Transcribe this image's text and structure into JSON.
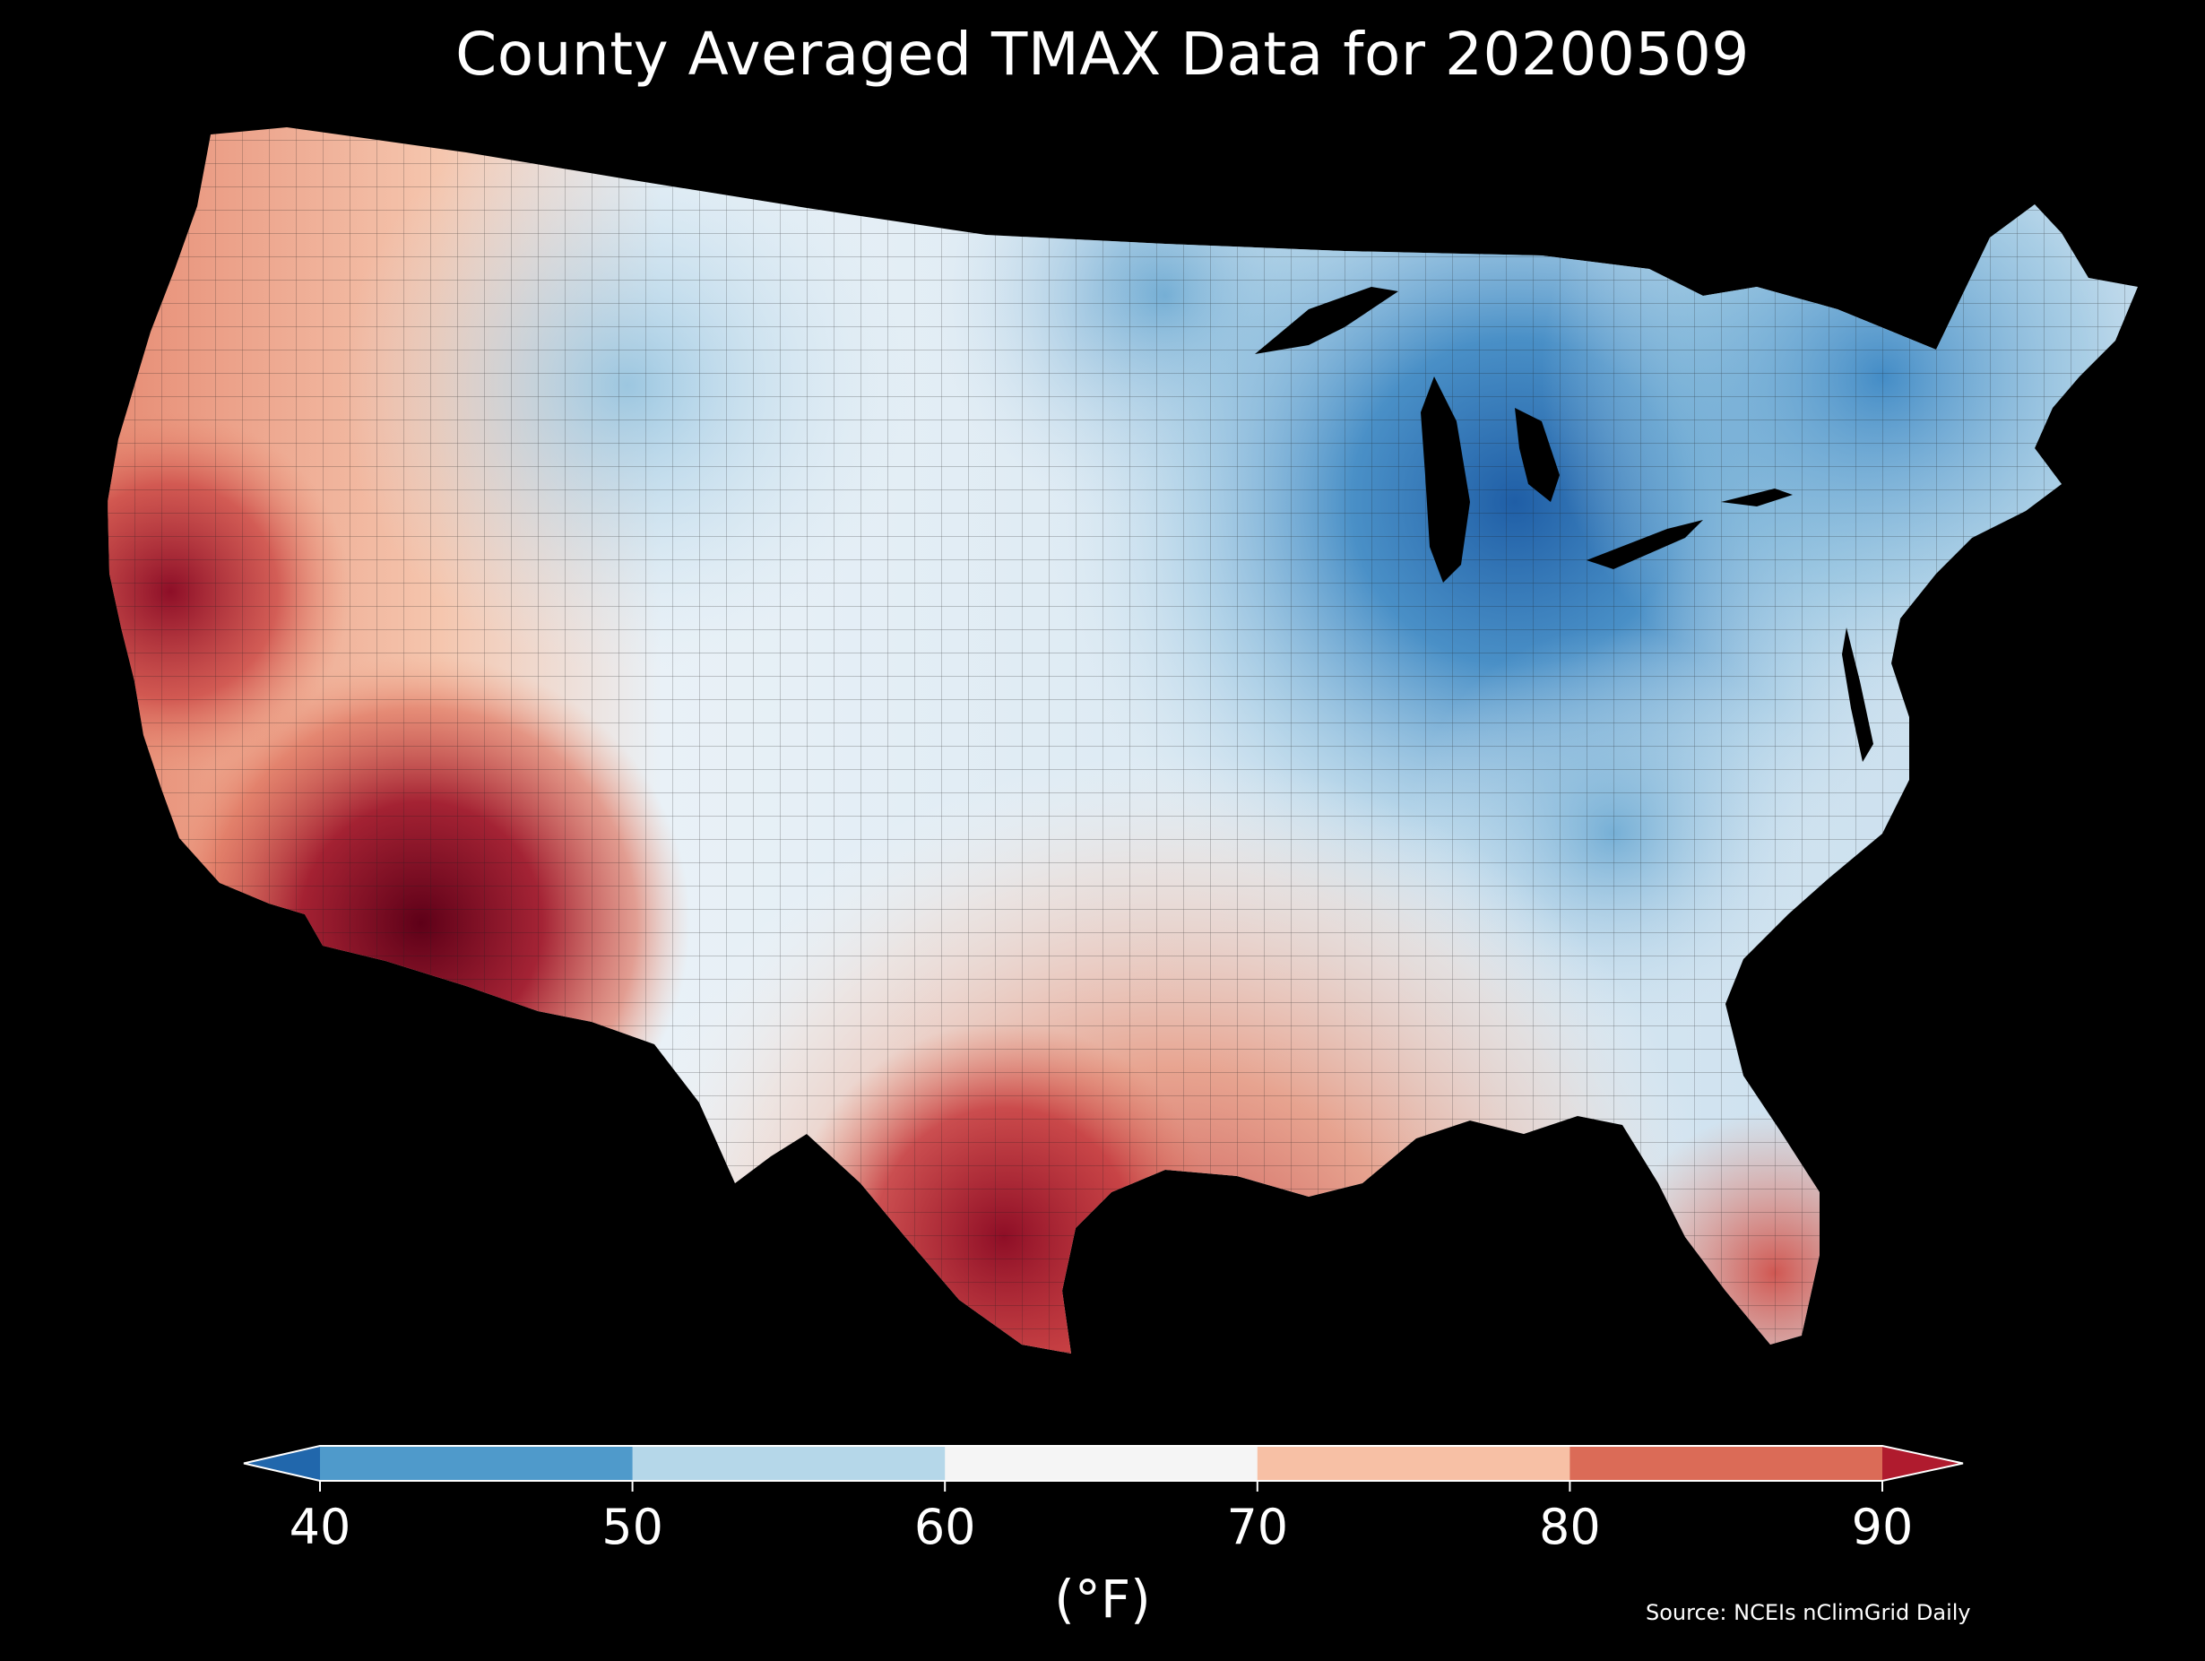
{
  "title": "County Averaged TMAX Data for 20200509",
  "colorbar": {
    "ticks": [
      "40",
      "50",
      "60",
      "70",
      "80",
      "90"
    ],
    "unit": "(°F)",
    "bins": [
      {
        "range": [
          40,
          50
        ],
        "color": "#4f9acb"
      },
      {
        "range": [
          50,
          60
        ],
        "color": "#b5d7e9"
      },
      {
        "range": [
          60,
          70
        ],
        "color": "#f5f5f5"
      },
      {
        "range": [
          70,
          80
        ],
        "color": "#f7c0a5"
      },
      {
        "range": [
          80,
          90
        ],
        "color": "#db6b57"
      }
    ],
    "under_color": "#2167ac",
    "over_color": "#b01b2e"
  },
  "source": "Source: NCEIs nClimGrid Daily",
  "palette": {
    "very_cold": "#1a5598",
    "cold": "#4f9acb",
    "cool": "#b5d7e9",
    "mild": "#f5f5f5",
    "warm": "#f7c0a5",
    "hot": "#db6b57",
    "very_hot": "#b01b2e",
    "extreme": "#6a0020",
    "background": "#000000"
  }
}
